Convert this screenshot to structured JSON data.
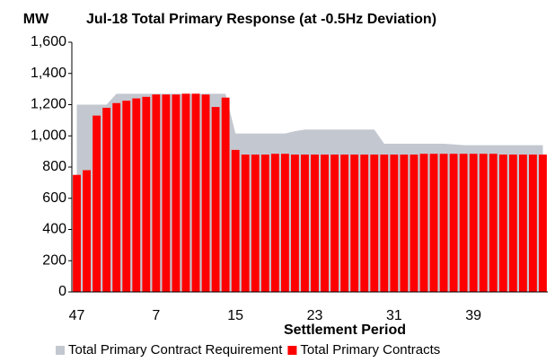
{
  "chart_data": {
    "type": "bar_area",
    "title": "Jul-18 Total Primary Response (at -0.5Hz Deviation)",
    "y_label": "MW",
    "x_label": "Settlement Period",
    "categories": [
      "47",
      null,
      null,
      null,
      null,
      null,
      null,
      null,
      "7",
      null,
      null,
      null,
      null,
      null,
      null,
      null,
      "15",
      null,
      null,
      null,
      null,
      null,
      null,
      null,
      "23",
      null,
      null,
      null,
      null,
      null,
      null,
      null,
      "31",
      null,
      null,
      null,
      null,
      null,
      null,
      null,
      "39",
      null,
      null,
      null,
      null,
      null,
      null,
      null
    ],
    "series": [
      {
        "name": "Total Primary Contract Requirement",
        "type": "area",
        "color": "#c3c7cf",
        "values": [
          1200,
          1200,
          1200,
          1200,
          1270,
          1270,
          1270,
          1270,
          1270,
          1270,
          1270,
          1270,
          1270,
          1270,
          1270,
          1270,
          1015,
          1015,
          1015,
          1015,
          1015,
          1015,
          1030,
          1040,
          1040,
          1040,
          1040,
          1040,
          1040,
          1040,
          1040,
          950,
          950,
          950,
          950,
          950,
          950,
          950,
          945,
          940,
          940,
          940,
          940,
          940,
          940,
          940,
          940,
          940
        ]
      },
      {
        "name": "Total Primary Contracts",
        "type": "bar",
        "color": "#ff0000",
        "values": [
          750,
          780,
          1130,
          1180,
          1210,
          1225,
          1240,
          1250,
          1265,
          1265,
          1265,
          1270,
          1270,
          1265,
          1185,
          1245,
          910,
          880,
          880,
          880,
          885,
          885,
          880,
          880,
          880,
          880,
          880,
          880,
          880,
          880,
          880,
          880,
          880,
          880,
          880,
          885,
          885,
          885,
          885,
          885,
          885,
          885,
          885,
          880,
          880,
          880,
          880,
          880
        ]
      }
    ],
    "ylim": [
      0,
      1600
    ],
    "yticks": [
      0,
      200,
      400,
      600,
      800,
      {
        "value": 1000,
        "label": "1,000"
      },
      {
        "value": 1200,
        "label": "1,200"
      },
      {
        "value": 1400,
        "label": "1,400"
      },
      {
        "value": 1600,
        "label": "1,600"
      }
    ],
    "legend": "bottom"
  }
}
